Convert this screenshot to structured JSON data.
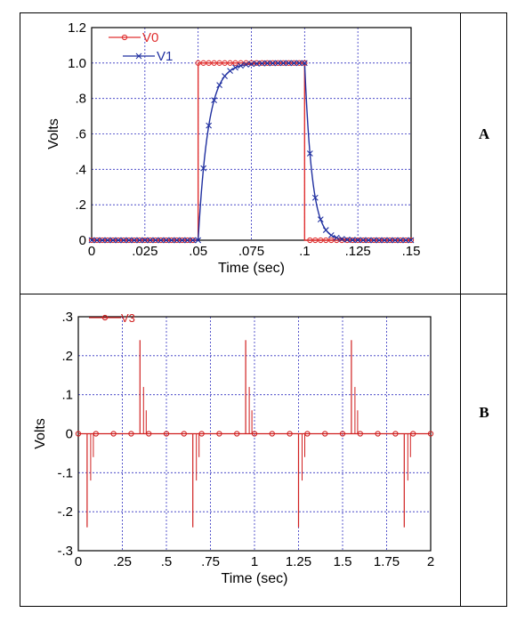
{
  "panels": [
    {
      "label": "A"
    },
    {
      "label": "B"
    }
  ],
  "colors": {
    "v0": "#e03030",
    "v1": "#2030a0",
    "v3": "#d02020",
    "grid": "#3030c0",
    "axis": "#000000"
  },
  "chart_data": [
    {
      "type": "line",
      "xlabel": "Time (sec)",
      "ylabel": "Volts",
      "xlim": [
        0,
        0.15
      ],
      "ylim": [
        0,
        1.2
      ],
      "xticks": [
        0,
        0.025,
        0.05,
        0.075,
        0.1,
        0.125,
        0.15
      ],
      "xtick_labels": [
        "0",
        ".025",
        ".05",
        ".075",
        ".1",
        ".125",
        ".15"
      ],
      "yticks": [
        0,
        0.2,
        0.4,
        0.6,
        0.8,
        1.0,
        1.2
      ],
      "ytick_labels": [
        "0",
        ".2",
        ".4",
        ".6",
        ".8",
        "1.0",
        "1.2"
      ],
      "grid": true,
      "legend_position": "top-left",
      "series": [
        {
          "name": "V0",
          "marker": "circle",
          "x": [
            0,
            0.05,
            0.05,
            0.1,
            0.1,
            0.15
          ],
          "y": [
            0,
            0,
            1.0,
            1.0,
            0,
            0
          ]
        },
        {
          "name": "V1",
          "marker": "x",
          "x": [
            0,
            0.05,
            0.052,
            0.055,
            0.058,
            0.062,
            0.066,
            0.07,
            0.075,
            0.08,
            0.09,
            0.1,
            0.102,
            0.105,
            0.108,
            0.112,
            0.116,
            0.12,
            0.125,
            0.13,
            0.15
          ],
          "y": [
            0,
            0,
            0.27,
            0.6,
            0.78,
            0.89,
            0.95,
            0.98,
            0.99,
            1.0,
            1.0,
            1.0,
            0.56,
            0.22,
            0.08,
            0.03,
            0.01,
            0,
            0,
            0,
            0
          ]
        }
      ]
    },
    {
      "type": "line",
      "xlabel": "Time (sec)",
      "ylabel": "Volts",
      "xlim": [
        0,
        2
      ],
      "ylim": [
        -0.3,
        0.3
      ],
      "xticks": [
        0,
        0.25,
        0.5,
        0.75,
        1,
        1.25,
        1.5,
        1.75,
        2
      ],
      "xtick_labels": [
        "0",
        ".25",
        ".5",
        ".75",
        "1",
        "1.25",
        "1.5",
        "1.75",
        "2"
      ],
      "yticks": [
        -0.3,
        -0.2,
        -0.1,
        0,
        0.1,
        0.2,
        0.3
      ],
      "ytick_labels": [
        "-.3",
        "-.2",
        "-.1",
        "0",
        ".1",
        ".2",
        ".3"
      ],
      "grid": true,
      "legend_position": "top-left",
      "series": [
        {
          "name": "V3",
          "marker": "circle",
          "spikes": [
            {
              "x": 0.05,
              "y": -0.24,
              "step": -0.06
            },
            {
              "x": 0.35,
              "y": 0.24,
              "step": 0.06
            },
            {
              "x": 0.65,
              "y": -0.24,
              "step": -0.06
            },
            {
              "x": 0.95,
              "y": 0.24,
              "step": 0.06
            },
            {
              "x": 1.25,
              "y": -0.24,
              "step": -0.06
            },
            {
              "x": 1.55,
              "y": 0.24,
              "step": 0.06
            },
            {
              "x": 1.85,
              "y": -0.24,
              "step": -0.06
            }
          ]
        }
      ]
    }
  ]
}
